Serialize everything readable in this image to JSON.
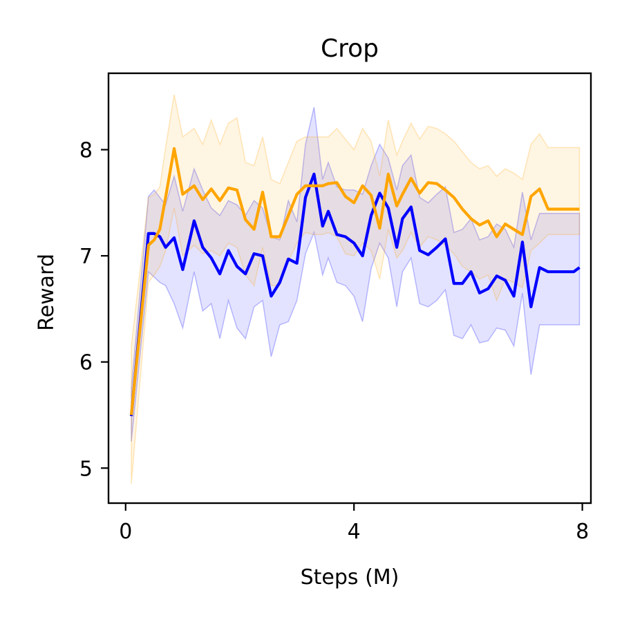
{
  "chart_data": {
    "type": "line",
    "title": "Crop",
    "xlabel": "Steps (M)",
    "ylabel": "Reward",
    "xlim": [
      -0.3,
      8.15
    ],
    "ylim": [
      4.67,
      8.72
    ],
    "xticks": [
      0,
      4,
      8
    ],
    "xtick_labels": [
      "0",
      "4",
      "8"
    ],
    "yticks": [
      5,
      6,
      7,
      8
    ],
    "ytick_labels": [
      "5",
      "6",
      "7",
      "8"
    ],
    "grid": false,
    "legend": "none",
    "x": [
      0.1,
      0.4,
      0.5,
      0.6,
      0.7,
      0.85,
      1.0,
      1.2,
      1.35,
      1.5,
      1.65,
      1.8,
      1.95,
      2.1,
      2.25,
      2.4,
      2.55,
      2.7,
      2.85,
      3.0,
      3.15,
      3.3,
      3.45,
      3.55,
      3.7,
      3.85,
      4.0,
      4.15,
      4.3,
      4.45,
      4.6,
      4.75,
      4.85,
      5.0,
      5.15,
      5.3,
      5.45,
      5.6,
      5.75,
      5.9,
      6.05,
      6.2,
      6.35,
      6.5,
      6.65,
      6.8,
      6.95,
      7.1,
      7.25,
      7.4,
      7.55,
      7.7,
      7.85,
      7.95
    ],
    "series": [
      {
        "color": "#0000ff",
        "values": [
          5.49,
          7.21,
          7.21,
          7.18,
          7.08,
          7.17,
          6.87,
          7.33,
          7.08,
          6.98,
          6.83,
          7.05,
          6.9,
          6.83,
          7.02,
          7.0,
          6.62,
          6.75,
          6.97,
          6.93,
          7.55,
          7.77,
          7.28,
          7.42,
          7.2,
          7.18,
          7.12,
          7.0,
          7.38,
          7.59,
          7.45,
          7.08,
          7.35,
          7.46,
          7.05,
          7.01,
          7.08,
          7.16,
          6.74,
          6.74,
          6.85,
          6.65,
          6.69,
          6.81,
          6.77,
          6.62,
          7.13,
          6.52,
          6.89,
          6.85,
          6.85,
          6.85,
          6.85,
          6.89
        ],
        "lower": [
          5.25,
          6.85,
          6.8,
          6.75,
          6.72,
          6.55,
          6.32,
          6.85,
          6.48,
          6.55,
          6.22,
          6.58,
          6.32,
          6.22,
          6.52,
          6.58,
          6.05,
          6.35,
          6.38,
          6.58,
          7.02,
          7.22,
          6.82,
          6.98,
          6.75,
          6.72,
          6.62,
          6.38,
          6.88,
          7.12,
          6.98,
          6.52,
          6.85,
          6.98,
          6.55,
          6.52,
          6.58,
          6.68,
          6.25,
          6.22,
          6.35,
          6.18,
          6.2,
          6.32,
          6.3,
          6.15,
          6.65,
          5.88,
          6.35,
          6.35,
          6.35,
          6.35,
          6.35,
          6.35
        ],
        "upper": [
          5.75,
          7.56,
          7.62,
          7.55,
          7.48,
          7.75,
          7.42,
          7.82,
          7.62,
          7.45,
          7.38,
          7.52,
          7.48,
          7.38,
          7.52,
          7.45,
          7.18,
          7.15,
          7.52,
          7.32,
          8.05,
          8.4,
          7.72,
          7.88,
          7.65,
          7.62,
          7.62,
          7.58,
          7.85,
          8.05,
          7.92,
          7.62,
          7.85,
          7.95,
          7.55,
          7.5,
          7.58,
          7.65,
          7.22,
          7.25,
          7.35,
          7.15,
          7.18,
          7.3,
          7.25,
          7.08,
          7.6,
          7.15,
          7.4,
          7.4,
          7.4,
          7.4,
          7.4,
          7.4
        ]
      },
      {
        "color": "#ffa500",
        "values": [
          5.5,
          7.1,
          7.15,
          7.25,
          7.55,
          8.01,
          7.58,
          7.66,
          7.53,
          7.63,
          7.52,
          7.64,
          7.62,
          7.34,
          7.25,
          7.6,
          7.18,
          7.18,
          7.38,
          7.58,
          7.66,
          7.66,
          7.66,
          7.68,
          7.69,
          7.56,
          7.5,
          7.66,
          7.57,
          7.26,
          7.77,
          7.47,
          7.58,
          7.73,
          7.59,
          7.69,
          7.68,
          7.62,
          7.55,
          7.44,
          7.35,
          7.29,
          7.33,
          7.18,
          7.3,
          7.25,
          7.2,
          7.56,
          7.63,
          7.44,
          7.44,
          7.44,
          7.44,
          7.44
        ],
        "lower": [
          4.85,
          6.75,
          6.82,
          6.9,
          7.05,
          7.45,
          7.0,
          7.1,
          7.02,
          7.05,
          7.0,
          7.12,
          7.08,
          6.82,
          6.72,
          7.08,
          6.72,
          6.72,
          6.95,
          7.12,
          7.22,
          7.2,
          7.2,
          7.22,
          7.18,
          7.02,
          7.0,
          7.12,
          7.05,
          6.78,
          7.25,
          6.98,
          7.05,
          7.22,
          7.08,
          7.18,
          7.15,
          7.1,
          7.02,
          6.9,
          6.85,
          6.78,
          6.82,
          6.58,
          6.78,
          6.75,
          6.7,
          7.05,
          7.12,
          7.2,
          7.2,
          7.2,
          7.2,
          7.2
        ],
        "upper": [
          6.15,
          7.55,
          7.58,
          7.65,
          8.02,
          8.52,
          8.12,
          8.2,
          8.05,
          8.28,
          8.05,
          8.25,
          8.3,
          7.88,
          7.85,
          8.12,
          7.72,
          7.68,
          7.88,
          8.08,
          8.12,
          8.12,
          8.12,
          8.12,
          8.2,
          8.1,
          8.0,
          8.2,
          8.08,
          7.75,
          8.28,
          7.95,
          8.08,
          8.25,
          8.1,
          8.22,
          8.2,
          8.15,
          8.08,
          7.98,
          7.88,
          7.82,
          7.85,
          7.75,
          7.82,
          7.78,
          7.72,
          8.05,
          8.15,
          8.02,
          8.02,
          8.02,
          8.02,
          8.02
        ]
      }
    ]
  }
}
